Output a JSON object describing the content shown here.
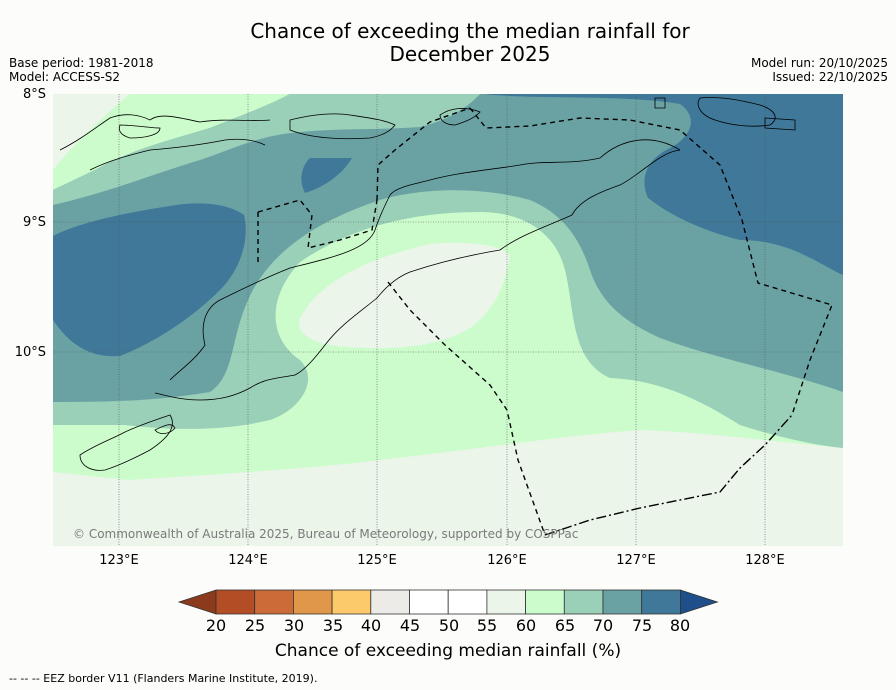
{
  "title_line1": "Chance of exceeding the median rainfall for",
  "title_line2": "December 2025",
  "base_period": "Base period: 1981-2018",
  "model": "Model: ACCESS-S2",
  "model_run": "Model run: 20/10/2025",
  "issued": "Issued: 22/10/2025",
  "lat_labels": [
    "8°S",
    "9°S",
    "10°S"
  ],
  "lon_labels": [
    "123°E",
    "124°E",
    "125°E",
    "126°E",
    "127°E",
    "128°E"
  ],
  "copyright": "© Commonwealth of Australia 2025, Bureau of Meteorology, supported by COSPPac",
  "colorbar": {
    "ticks": [
      "20",
      "25",
      "30",
      "35",
      "40",
      "45",
      "50",
      "55",
      "60",
      "65",
      "70",
      "75",
      "80"
    ],
    "label": "Chance of exceeding median rainfall (%)",
    "colors": [
      "#8c3a1c",
      "#b34d26",
      "#cc6a38",
      "#e0974a",
      "#fcca6a",
      "#ecebe8",
      "#ffffff",
      "#ffffff",
      "#ebf5ea",
      "#ccfccc",
      "#9acfb8",
      "#6aa2a4",
      "#3f7898",
      "#1e4f8a"
    ]
  },
  "legend_colors": {
    "c55_60": "#ebf5ea",
    "c60_65": "#ccfccc",
    "c65_70": "#9acfb8",
    "c70_75": "#6aa2a4",
    "c75_80": "#3f7898"
  },
  "footnote": "-- -- -- EEZ border V11 (Flanders Marine Institute, 2019)."
}
